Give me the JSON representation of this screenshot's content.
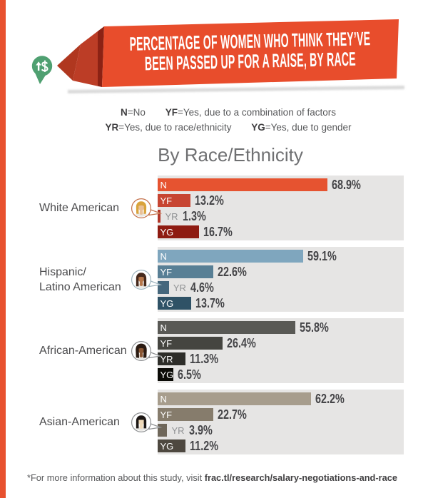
{
  "page": {
    "accent_stripe_color": "#E8512F",
    "background": "#FFFFFF"
  },
  "header": {
    "icon": "money-increase-pin-icon",
    "icon_symbol": "↑$",
    "icon_color": "#4FA071",
    "banner_color": "#E84D2C",
    "ribbon_fold_colors": [
      "#B0371F",
      "#BC3D26",
      "#8C2214"
    ],
    "title_line1": "PERCENTAGE OF WOMEN WHO THINK THEY’VE",
    "title_line2": "BEEN PASSED UP FOR A RAISE, BY RACE"
  },
  "legend": {
    "items": [
      {
        "key": "N",
        "text": "=No"
      },
      {
        "key": "YF",
        "text": "=Yes, due to a combination of factors"
      },
      {
        "key": "YR",
        "text": "=Yes, due to race/ethnicity"
      },
      {
        "key": "YG",
        "text": "=Yes, due to gender"
      }
    ]
  },
  "section_title": "By Race/Ethnicity",
  "chart_data": {
    "type": "bar",
    "orientation": "horizontal",
    "value_unit": "%",
    "xlim": [
      0,
      100
    ],
    "bar_keys": [
      "N",
      "YF",
      "YR",
      "YG"
    ],
    "panel_color": "#E6E5E4",
    "groups": [
      {
        "label": "White American",
        "label_lines": [
          "White American"
        ],
        "avatar": "white-american-woman",
        "ring_color": "#C4714B",
        "avatar_colors": {
          "hair": "#D9A33C",
          "skin": "#E9C098",
          "shirt": "#EAE7E1"
        },
        "bar_colors": [
          "#E65330",
          "#C74532",
          "#B23528",
          "#8E1B11"
        ],
        "values": [
          68.9,
          13.2,
          1.3,
          16.7
        ],
        "value_labels": [
          "68.9%",
          "13.2%",
          "1.3%",
          "16.7%"
        ]
      },
      {
        "label": "Hispanic/Latino American",
        "label_lines": [
          "Hispanic/",
          "Latino American"
        ],
        "avatar": "latina-woman",
        "ring_color": "#9FB5BF",
        "avatar_colors": {
          "hair": "#45291C",
          "skin": "#B5764A",
          "shirt": "#E8E6E2"
        },
        "bar_colors": [
          "#7FA6BE",
          "#587F95",
          "#45677C",
          "#2F5266"
        ],
        "values": [
          59.1,
          22.6,
          4.6,
          13.7
        ],
        "value_labels": [
          "59.1%",
          "22.6%",
          "4.6%",
          "13.7%"
        ]
      },
      {
        "label": "African-American",
        "label_lines": [
          "African-American"
        ],
        "avatar": "african-american-woman",
        "ring_color": "#8E9092",
        "avatar_colors": {
          "hair": "#2B1B12",
          "skin": "#8A5633",
          "shirt": "#E8E6E2"
        },
        "bar_colors": [
          "#595955",
          "#454540",
          "#2D2D29",
          "#0B0B07"
        ],
        "values": [
          55.8,
          26.4,
          11.3,
          6.5
        ],
        "value_labels": [
          "55.8%",
          "26.4%",
          "11.3%",
          "6.5%"
        ]
      },
      {
        "label": "Asian-American",
        "label_lines": [
          "Asian-American"
        ],
        "avatar": "asian-american-woman",
        "ring_color": "#8E9092",
        "avatar_colors": {
          "hair": "#1C1714",
          "skin": "#EFD9B8",
          "shirt": "#E8E6E2"
        },
        "bar_colors": [
          "#A79D8D",
          "#867C6C",
          "#6F675A",
          "#4E4840"
        ],
        "values": [
          62.2,
          22.7,
          3.9,
          11.2
        ],
        "value_labels": [
          "62.2%",
          "22.7%",
          "3.9%",
          "11.2%"
        ]
      }
    ]
  },
  "footer": {
    "text": "*For more information about this study, visit ",
    "link": "frac.tl/research/salary-negotiations-and-race"
  }
}
